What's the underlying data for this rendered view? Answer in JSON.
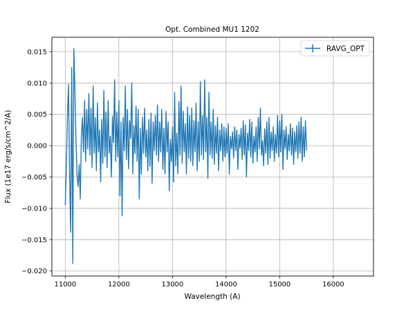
{
  "chart_data": {
    "type": "line",
    "title": "Opt. Combined MU1 1202",
    "xlabel": "Wavelength (A)",
    "ylabel": "Flux (1e17 erg/s/cm^2/A)",
    "xlim": [
      10750,
      16750
    ],
    "ylim": [
      -0.0208,
      0.0173
    ],
    "xticks": [
      11000,
      12000,
      13000,
      14000,
      15000,
      16000
    ],
    "xtick_labels": [
      "11000",
      "12000",
      "13000",
      "14000",
      "15000",
      "16000"
    ],
    "yticks": [
      0.015,
      0.01,
      0.005,
      0.0,
      -0.005,
      -0.01,
      -0.015,
      -0.02
    ],
    "ytick_labels": [
      "0.015",
      "0.010",
      "0.005",
      "0.000",
      "−0.005",
      "−0.010",
      "−0.015",
      "−0.020"
    ],
    "grid": true,
    "legend_position": "top-right",
    "series": [
      {
        "name": "RAVG_OPT",
        "color": "#1f77b4",
        "style": "errorbar-line",
        "x_start": 11000,
        "x_step": 20,
        "values": [
          -0.0095,
          -0.0032,
          0.0045,
          0.0098,
          -0.0045,
          -0.0138,
          0.0125,
          -0.0188,
          0.0155,
          0.0087,
          0.001,
          -0.0048,
          -0.0065,
          -0.003,
          -0.0085,
          0.0015,
          0.0045,
          -0.001,
          0.0072,
          -0.0025,
          0.0058,
          -0.0005,
          0.0083,
          -0.0015,
          0.006,
          -0.0035,
          0.0095,
          -0.0012,
          0.0045,
          -0.004,
          0.0068,
          -0.001,
          0.0025,
          -0.0058,
          0.0042,
          -0.0028,
          0.0088,
          -0.0018,
          0.0054,
          -0.0035,
          0.0072,
          -0.0012,
          0.0015,
          -0.005,
          0.0047,
          0.0005,
          0.0105,
          -0.0025,
          0.0054,
          -0.0018,
          0.0072,
          -0.008,
          0.0038,
          -0.0112,
          0.0045,
          -0.0008,
          0.0095,
          -0.0022,
          0.0058,
          -0.0037,
          0.004,
          0.0012,
          0.01,
          -0.0045,
          0.0032,
          -0.0013,
          0.0063,
          -0.0025,
          0.0058,
          -0.0085,
          0.0028,
          -0.0045,
          0.0045,
          -0.0012,
          0.006,
          -0.0018,
          0.0025,
          -0.004,
          0.0042,
          -0.0033,
          0.0052,
          -0.006,
          0.0038,
          -0.0008,
          0.0048,
          -0.0015,
          0.0065,
          -0.0025,
          0.0038,
          -0.001,
          0.0058,
          -0.0038,
          0.0028,
          -0.0045,
          0.0055,
          -0.001,
          0.0038,
          -0.0072,
          0.001,
          -0.0025,
          0.003,
          -0.0058,
          0.0085,
          -0.0032,
          0.002,
          -0.0045,
          0.007,
          -0.0015,
          0.0095,
          -0.0028,
          0.0055,
          -0.001,
          0.0035,
          -0.0045,
          0.0062,
          -0.002,
          0.0048,
          -0.0025,
          0.006,
          -0.0032,
          0.004,
          -0.001,
          0.0068,
          -0.004,
          0.0038,
          -0.0025,
          0.0102,
          -0.0015,
          0.0048,
          -0.0022,
          0.0105,
          -0.001,
          0.0045,
          -0.0052,
          0.0085,
          -0.0015,
          0.0038,
          -0.002,
          0.0058,
          -0.003,
          0.0032,
          -0.0012,
          0.0045,
          -0.004,
          0.0025,
          -0.0008,
          0.0035,
          -0.0025,
          0.003,
          -0.0018,
          0.0028,
          -0.0012,
          0.0035,
          -0.0045,
          0.0015,
          -0.0005,
          0.0022,
          -0.002,
          0.003,
          -0.0008,
          0.0025,
          -0.0038,
          0.0018,
          -0.0004,
          0.0028,
          -0.0022,
          0.004,
          -0.0015,
          0.0033,
          -0.005,
          0.002,
          -0.0008,
          0.0042,
          -0.0018,
          0.0038,
          -0.0028,
          0.0015,
          -0.001,
          0.003,
          -0.0025,
          0.0045,
          -0.0005,
          0.006,
          -0.0015,
          0.0008,
          -0.0032,
          0.0027,
          -0.0012,
          0.0038,
          -0.003,
          0.0045,
          -0.002,
          0.0022,
          -0.0008,
          0.003,
          -0.0025,
          0.0018,
          -0.0012,
          0.0048,
          -0.0018,
          0.004,
          -0.001,
          0.005,
          -0.0038,
          0.0025,
          -0.0005,
          0.003,
          -0.0022,
          0.0018,
          -0.0008,
          0.0035,
          -0.0015,
          0.0028,
          -0.003,
          0.0022,
          -0.001,
          0.0032,
          -0.002,
          0.0038,
          -0.0012,
          0.0045,
          -0.0025,
          0.003,
          -0.0018,
          0.004,
          -0.0008
        ]
      }
    ]
  }
}
